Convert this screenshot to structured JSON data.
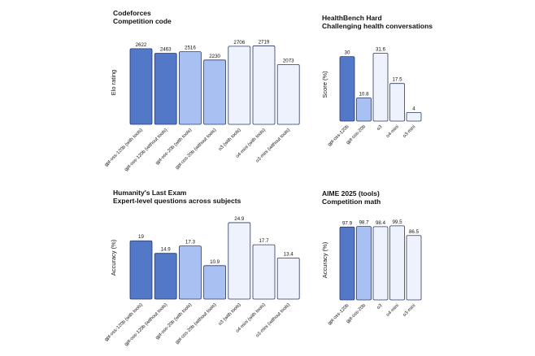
{
  "colors": {
    "gpt_oss_120b": "#5478c8",
    "gpt_oss_20b": "#a9c0f2",
    "o_series": "#eef2fc",
    "edge": "#2b3a63",
    "text": "#111111"
  },
  "chart_data": [
    {
      "type": "bar",
      "title": "Codeforces",
      "subtitle": "Competition code",
      "ylabel": "Elo rating",
      "ylim": [
        0,
        2900
      ],
      "categories": [
        "gpt-oss-120b (with tools)",
        "gpt-oss-120b (without tools)",
        "gpt-oss-20b (with tools)",
        "gpt-oss-20b (without tools)",
        "o3 (with tools)",
        "o4-mini (with tools)",
        "o3-mini (without tools)"
      ],
      "values": [
        2622,
        2463,
        2516,
        2230,
        2706,
        2719,
        2073
      ],
      "value_labels": [
        "2622",
        "2463",
        "2516",
        "2230",
        "2706",
        "2719",
        "2073"
      ],
      "color_keys": [
        "gpt_oss_120b",
        "gpt_oss_120b",
        "gpt_oss_20b",
        "gpt_oss_20b",
        "o_series",
        "o_series",
        "o_series"
      ]
    },
    {
      "type": "bar",
      "title": "HealthBench Hard",
      "subtitle": "Challenging health conversations",
      "ylabel": "Score (%)",
      "ylim": [
        0,
        34
      ],
      "categories": [
        "gpt-oss-120b",
        "gpt-oss-20b",
        "o3",
        "o4-mini",
        "o3-mini"
      ],
      "values": [
        30,
        10.8,
        31.6,
        17.5,
        4
      ],
      "value_labels": [
        "30",
        "10.8",
        "31.6",
        "17.5",
        "4"
      ],
      "color_keys": [
        "gpt_oss_120b",
        "gpt_oss_20b",
        "o_series",
        "o_series",
        "o_series"
      ]
    },
    {
      "type": "bar",
      "title": "Humanity's Last Exam",
      "subtitle": "Expert-level questions across subjects",
      "ylabel": "Accuracy (%)",
      "ylim": [
        0,
        27
      ],
      "categories": [
        "gpt-oss-120b (with tools)",
        "gpt-oss-120b (without tools)",
        "gpt-oss-20b (with tools)",
        "gpt-oss-20b (without tools)",
        "o3 (with tools)",
        "o4-mini (with tools)",
        "o3-mini (without tools)"
      ],
      "values": [
        19,
        14.9,
        17.3,
        10.9,
        24.9,
        17.7,
        13.4
      ],
      "value_labels": [
        "19",
        "14.9",
        "17.3",
        "10.9",
        "24.9",
        "17.7",
        "13.4"
      ],
      "color_keys": [
        "gpt_oss_120b",
        "gpt_oss_120b",
        "gpt_oss_20b",
        "gpt_oss_20b",
        "o_series",
        "o_series",
        "o_series"
      ]
    },
    {
      "type": "bar",
      "title": "AIME 2025 (tools)",
      "subtitle": "Competition math",
      "ylabel": "Accuracy (%)",
      "ylim": [
        0,
        107
      ],
      "categories": [
        "gpt-oss-120b",
        "gpt-oss-20b",
        "o3",
        "o4-mini",
        "o3-mini"
      ],
      "values": [
        97.9,
        98.7,
        98.4,
        99.5,
        86.5
      ],
      "value_labels": [
        "97.9",
        "98.7",
        "98.4",
        "99.5",
        "86.5"
      ],
      "color_keys": [
        "gpt_oss_120b",
        "gpt_oss_20b",
        "o_series",
        "o_series",
        "o_series"
      ]
    }
  ]
}
